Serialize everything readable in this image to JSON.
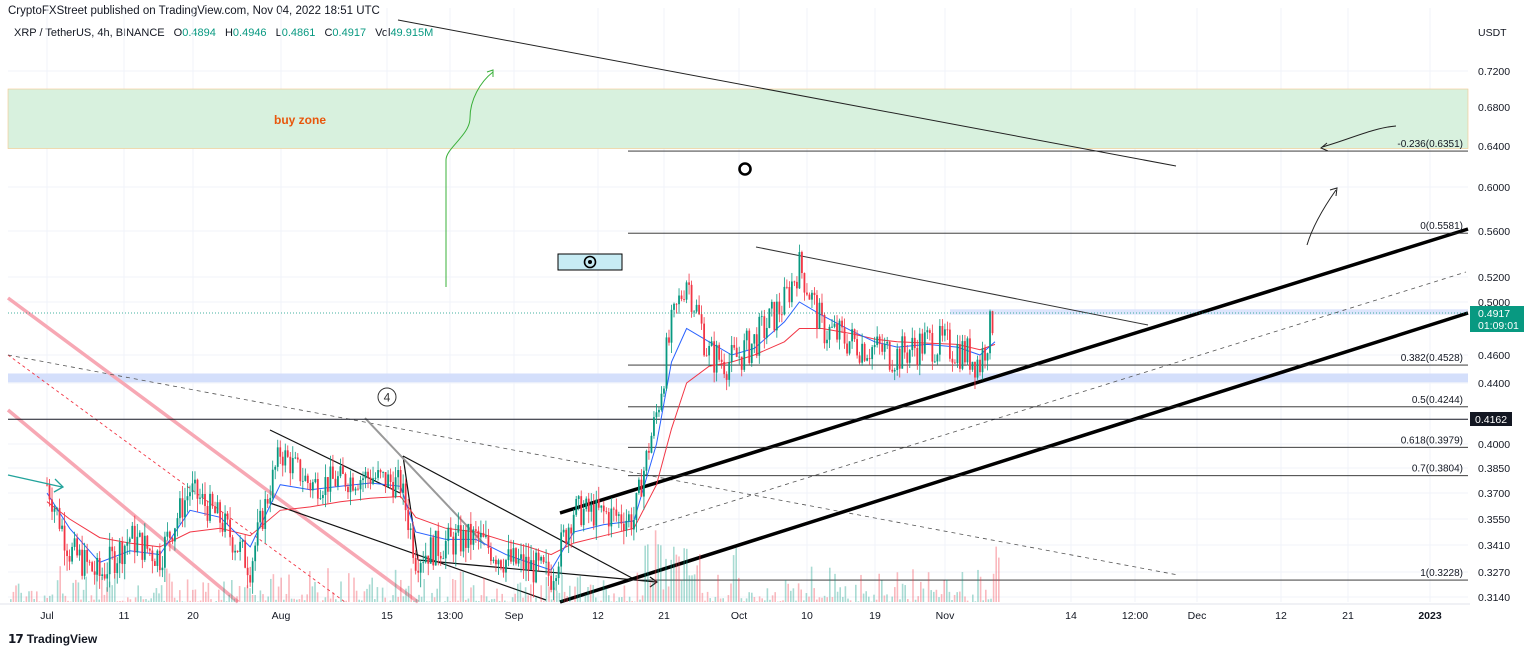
{
  "header": {
    "published": "CryptoFXStreet published on TradingView.com, Nov 04, 2022 18:51 UTC"
  },
  "legend": {
    "symbol": "XRP / TetherUS, 4h, BINANCE",
    "open_label": "O",
    "open": "0.4894",
    "high_label": "H",
    "high": "0.4946",
    "low_label": "L",
    "low": "0.4861",
    "close_label": "C",
    "close": "0.4917",
    "vol_label": "Vol",
    "vol": "49.915M"
  },
  "footer": {
    "brand": "TradingView",
    "logo_glyph": "𝟭𝟳"
  },
  "colors": {
    "up": "#089981",
    "down": "#f23645",
    "ema_fast": "#2962ff",
    "ema_slow": "#f23645",
    "buy_zone": "#d5f0dc",
    "band": "#c9d8fb",
    "accent_price": "#089981"
  },
  "chart_data": {
    "type": "line",
    "title": "",
    "currency": "USDT",
    "y_ticks": [
      "0.7200",
      "0.6800",
      "0.6400",
      "0.6000",
      "0.5600",
      "0.5200",
      "0.5000",
      "0.4600",
      "0.4400",
      "0.4000",
      "0.3850",
      "0.3700",
      "0.3550",
      "0.3410",
      "0.3270",
      "0.3140"
    ],
    "x_ticks": [
      "Jul",
      "11",
      "20",
      "Aug",
      "15",
      "13:00",
      "Sep",
      "12",
      "21",
      "Oct",
      "10",
      "19",
      "Nov",
      "14",
      "12:00",
      "Dec",
      "12",
      "21",
      "2023"
    ],
    "ylim": [
      0.31,
      0.75
    ],
    "price_series": {
      "name": "",
      "x": [
        "2022-07-01",
        "2022-07-04",
        "2022-07-08",
        "2022-07-12",
        "2022-07-16",
        "2022-07-20",
        "2022-07-24",
        "2022-07-28",
        "2022-08-01",
        "2022-08-05",
        "2022-08-09",
        "2022-08-13",
        "2022-08-17",
        "2022-08-19",
        "2022-08-23",
        "2022-08-27",
        "2022-08-31",
        "2022-09-03",
        "2022-09-06",
        "2022-09-09",
        "2022-09-13",
        "2022-09-17",
        "2022-09-20",
        "2022-09-22",
        "2022-09-24",
        "2022-09-27",
        "2022-09-30",
        "2022-10-03",
        "2022-10-07",
        "2022-10-09",
        "2022-10-12",
        "2022-10-16",
        "2022-10-19",
        "2022-10-22",
        "2022-10-26",
        "2022-10-30",
        "2022-11-02",
        "2022-11-04"
      ],
      "close": [
        0.375,
        0.338,
        0.325,
        0.345,
        0.335,
        0.372,
        0.355,
        0.33,
        0.395,
        0.375,
        0.378,
        0.38,
        0.375,
        0.335,
        0.342,
        0.345,
        0.333,
        0.33,
        0.325,
        0.36,
        0.358,
        0.355,
        0.42,
        0.48,
        0.52,
        0.46,
        0.455,
        0.47,
        0.5,
        0.53,
        0.48,
        0.47,
        0.465,
        0.46,
        0.47,
        0.465,
        0.455,
        0.4917
      ]
    },
    "ema_fast": {
      "name": "",
      "values": [
        0.37,
        0.35,
        0.332,
        0.338,
        0.336,
        0.36,
        0.356,
        0.34,
        0.375,
        0.372,
        0.374,
        0.376,
        0.374,
        0.348,
        0.344,
        0.344,
        0.336,
        0.332,
        0.328,
        0.348,
        0.352,
        0.354,
        0.4,
        0.455,
        0.48,
        0.47,
        0.46,
        0.465,
        0.485,
        0.5,
        0.49,
        0.478,
        0.47,
        0.466,
        0.468,
        0.466,
        0.46,
        0.47
      ]
    },
    "ema_slow": {
      "name": "",
      "values": [
        0.365,
        0.355,
        0.345,
        0.342,
        0.34,
        0.348,
        0.35,
        0.346,
        0.36,
        0.362,
        0.365,
        0.367,
        0.368,
        0.356,
        0.35,
        0.348,
        0.343,
        0.34,
        0.336,
        0.342,
        0.346,
        0.35,
        0.375,
        0.41,
        0.44,
        0.452,
        0.455,
        0.46,
        0.47,
        0.48,
        0.48,
        0.476,
        0.472,
        0.47,
        0.469,
        0.468,
        0.464,
        0.468
      ]
    },
    "fib_levels": [
      {
        "label": "-0.236(0.6351)",
        "value": 0.6351
      },
      {
        "label": "0(0.5581)",
        "value": 0.5581
      },
      {
        "label": "0.382(0.4528)",
        "value": 0.4528
      },
      {
        "label": "0.5(0.4244)",
        "value": 0.4244
      },
      {
        "label": "0.618(0.3979)",
        "value": 0.3979
      },
      {
        "label": "0.7(0.3804)",
        "value": 0.3804
      },
      {
        "label": "1(0.3228)",
        "value": 0.3228
      }
    ],
    "buy_zone": {
      "label": "buy zone",
      "low": 0.6375,
      "high": 0.7
    },
    "support_band": {
      "low": 0.4405,
      "high": 0.4468
    },
    "resistance_band": {
      "low": 0.4905,
      "high": 0.4945
    },
    "current_price": {
      "value": "0.4917",
      "countdown": "01:09:01"
    },
    "marked_price": {
      "value": "0.4162"
    },
    "wave_label": "4"
  }
}
